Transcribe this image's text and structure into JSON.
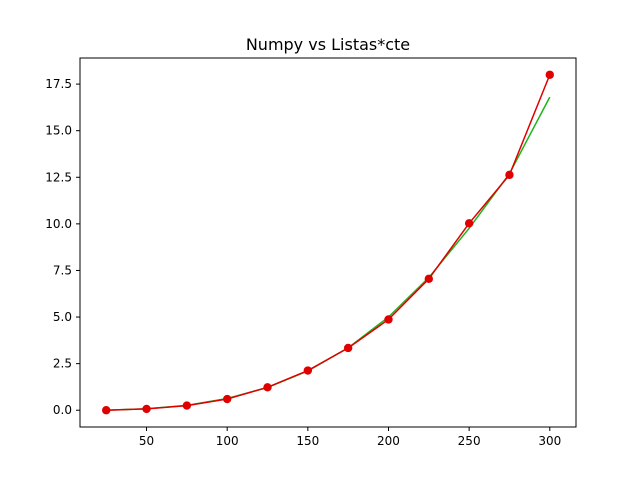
{
  "chart_data": {
    "type": "line",
    "title": "Numpy vs Listas*cte",
    "xlabel": "",
    "ylabel": "",
    "xlim": [
      8.75,
      316.25
    ],
    "ylim": [
      -0.9,
      18.9
    ],
    "xticks": [
      50,
      100,
      150,
      200,
      250,
      300
    ],
    "yticks": [
      0.0,
      2.5,
      5.0,
      7.5,
      10.0,
      12.5,
      15.0,
      17.5
    ],
    "xtick_labels": [
      "50",
      "100",
      "150",
      "200",
      "250",
      "300"
    ],
    "ytick_labels": [
      "0.0",
      "2.5",
      "5.0",
      "7.5",
      "10.0",
      "12.5",
      "15.0",
      "17.5"
    ],
    "grid": false,
    "series": [
      {
        "color": "#1db51d",
        "marker": "none",
        "x": [
          25,
          50,
          75,
          100,
          125,
          150,
          175,
          200,
          225,
          250,
          275,
          300
        ],
        "y": [
          0.0,
          0.08,
          0.26,
          0.63,
          1.22,
          2.11,
          3.35,
          5.0,
          7.12,
          9.76,
          12.7,
          16.8
        ]
      },
      {
        "color": "#e00000",
        "marker": "circle",
        "x": [
          25,
          50,
          75,
          100,
          125,
          150,
          175,
          200,
          225,
          250,
          275,
          300
        ],
        "y": [
          0.0,
          0.07,
          0.25,
          0.6,
          1.23,
          2.13,
          3.34,
          4.87,
          7.05,
          10.03,
          12.63,
          18.0
        ]
      }
    ]
  }
}
